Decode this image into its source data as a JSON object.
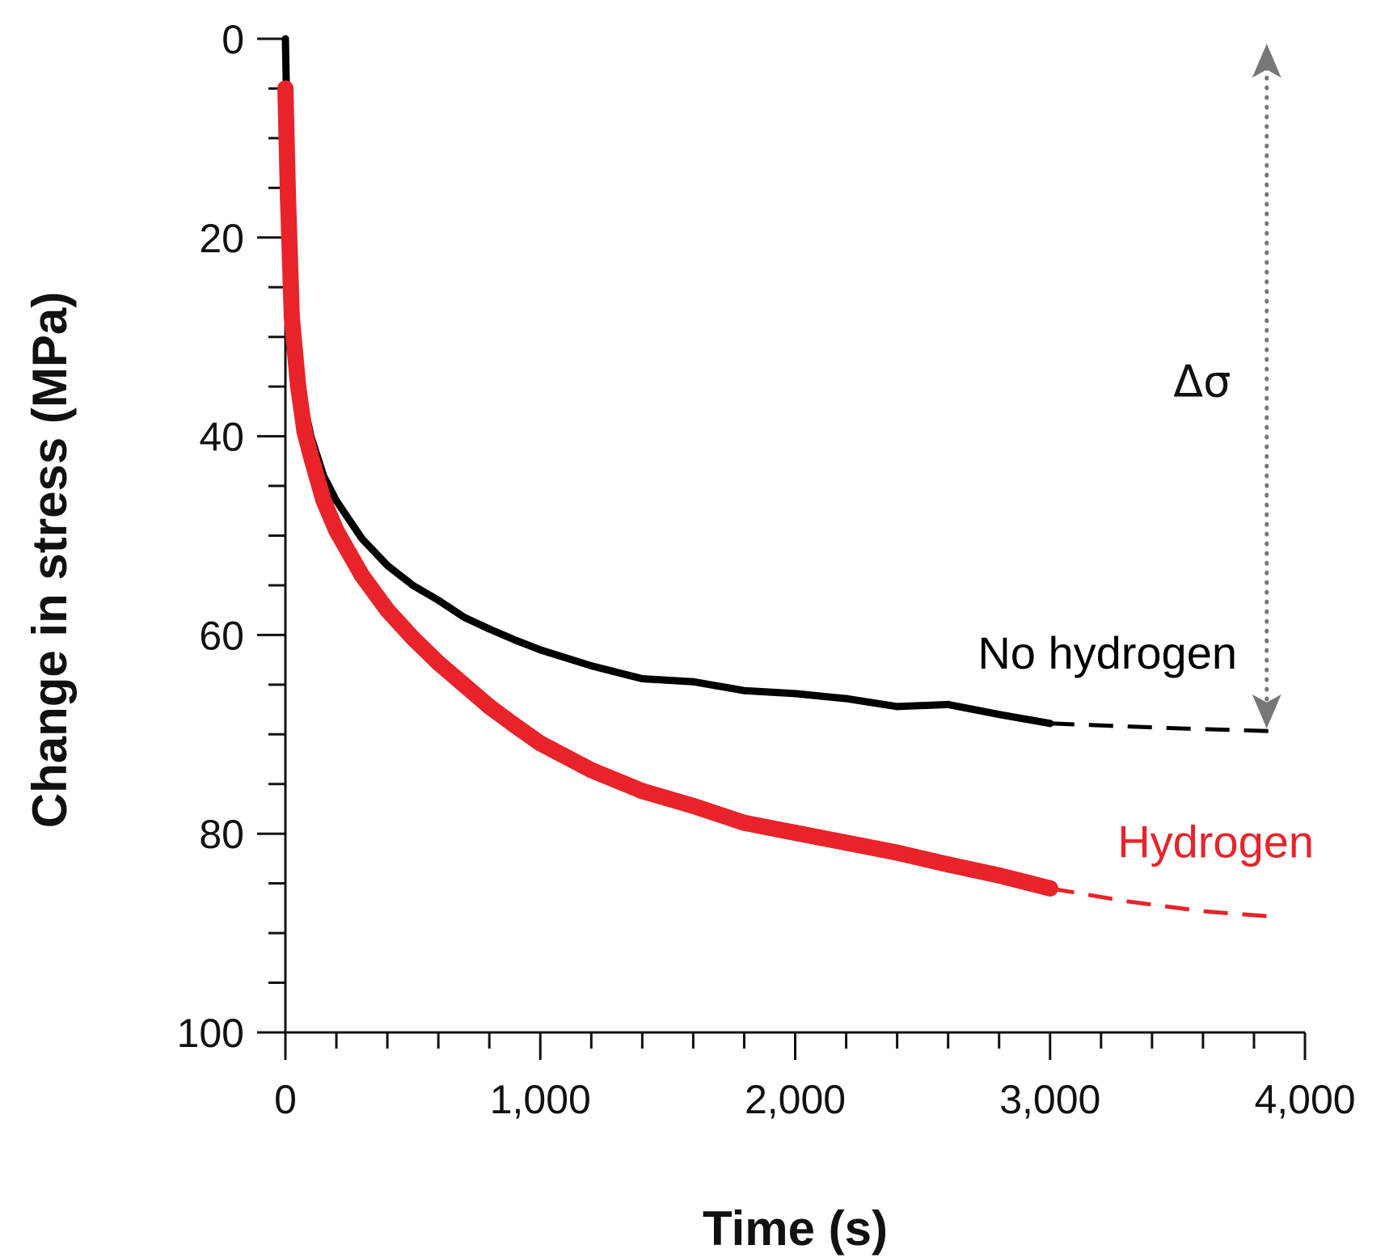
{
  "chart_data": {
    "type": "line",
    "title": "",
    "xlabel": "Time (s)",
    "ylabel": "Change in stress (MPa)",
    "xlim": [
      0,
      4000
    ],
    "ylim": [
      0,
      100
    ],
    "y_inverted": true,
    "x_ticks": [
      0,
      1000,
      2000,
      3000,
      4000
    ],
    "x_tick_labels": [
      "0",
      "1,000",
      "2,000",
      "3,000",
      "4,000"
    ],
    "x_minor_step": 200,
    "y_ticks": [
      0,
      20,
      40,
      60,
      80,
      100
    ],
    "y_tick_labels": [
      "0",
      "20",
      "40",
      "60",
      "80",
      "100"
    ],
    "y_minor_step": 5,
    "grid": false,
    "legend": "inline labels at right",
    "series": [
      {
        "name": "No hydrogen",
        "color": "#000000",
        "x": [
          0,
          10,
          25,
          50,
          75,
          100,
          150,
          200,
          300,
          400,
          500,
          600,
          700,
          800,
          900,
          1000,
          1200,
          1400,
          1600,
          1800,
          2000,
          2200,
          2400,
          2600,
          2800,
          3000
        ],
        "y": [
          0,
          14,
          26,
          33,
          37,
          40,
          44,
          46.5,
          50.3,
          53,
          55,
          56.5,
          58.2,
          59.4,
          60.5,
          61.5,
          63.1,
          64.4,
          64.7,
          65.6,
          65.9,
          66.4,
          67.2,
          67,
          68,
          68.9
        ]
      },
      {
        "name": "Hydrogen",
        "color": "#e8232a",
        "x": [
          0,
          10,
          25,
          50,
          75,
          100,
          150,
          200,
          300,
          400,
          500,
          600,
          700,
          800,
          900,
          1000,
          1200,
          1400,
          1600,
          1800,
          2000,
          2200,
          2400,
          2600,
          2800,
          3000
        ],
        "y": [
          5,
          16,
          28,
          35,
          39.5,
          42,
          46.5,
          49.5,
          54,
          57.5,
          60.3,
          62.8,
          65,
          67.2,
          69.1,
          70.9,
          73.6,
          75.7,
          77.2,
          78.9,
          79.9,
          80.9,
          81.9,
          83.1,
          84.2,
          85.5
        ]
      }
    ],
    "extrapolations": [
      {
        "series": "No hydrogen",
        "style": "dashed",
        "x": [
          3000,
          3500,
          3900
        ],
        "y": [
          68.9,
          69.4,
          69.7
        ]
      },
      {
        "series": "Hydrogen",
        "style": "dashed",
        "x": [
          3000,
          3300,
          3600,
          3900
        ],
        "y": [
          85.5,
          86.8,
          87.8,
          88.4
        ]
      }
    ],
    "annotations": [
      {
        "text": "Δσ",
        "type": "double-arrow",
        "x": 3850,
        "y_from": 0.5,
        "y_to": 69.4
      }
    ]
  }
}
